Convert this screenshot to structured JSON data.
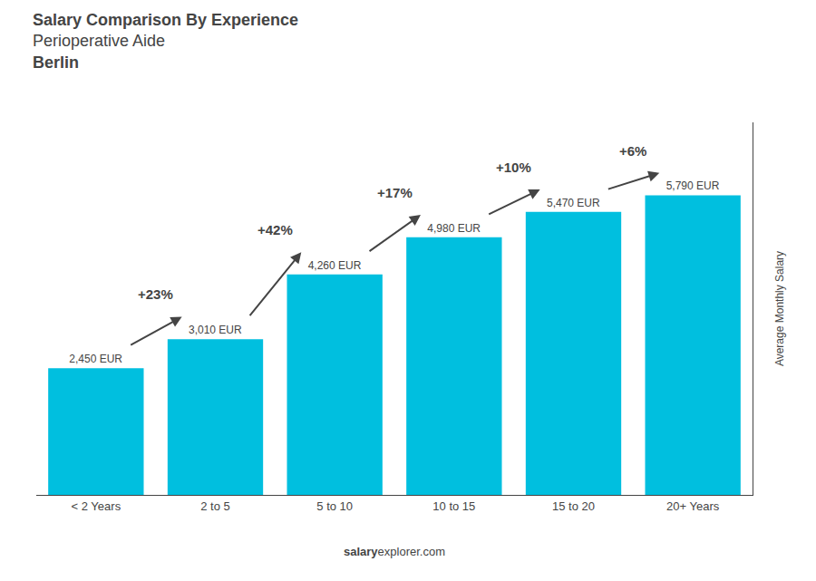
{
  "chart_data": {
    "type": "bar",
    "title": "Salary Comparison By Experience",
    "subtitle": "Perioperative Aide",
    "city": "Berlin",
    "ylabel": "Average Monthly Salary",
    "watermark": [
      "salary",
      "explorer.com"
    ],
    "categories": [
      "< 2 Years",
      "2 to 5",
      "5 to 10",
      "10 to 15",
      "15 to 20",
      "20+ Years"
    ],
    "values": [
      2450,
      3010,
      4260,
      4980,
      5470,
      5790
    ],
    "value_labels": [
      "2,450 EUR",
      "3,010 EUR",
      "4,260 EUR",
      "4,980 EUR",
      "5,470 EUR",
      "5,790 EUR"
    ],
    "data_labels": true,
    "annotations": [
      "+23%",
      "+42%",
      "+17%",
      "+10%",
      "+6%"
    ],
    "color": "#00bfdf",
    "ylim": [
      0,
      7200
    ],
    "tick_labels": "x",
    "grid": false
  }
}
